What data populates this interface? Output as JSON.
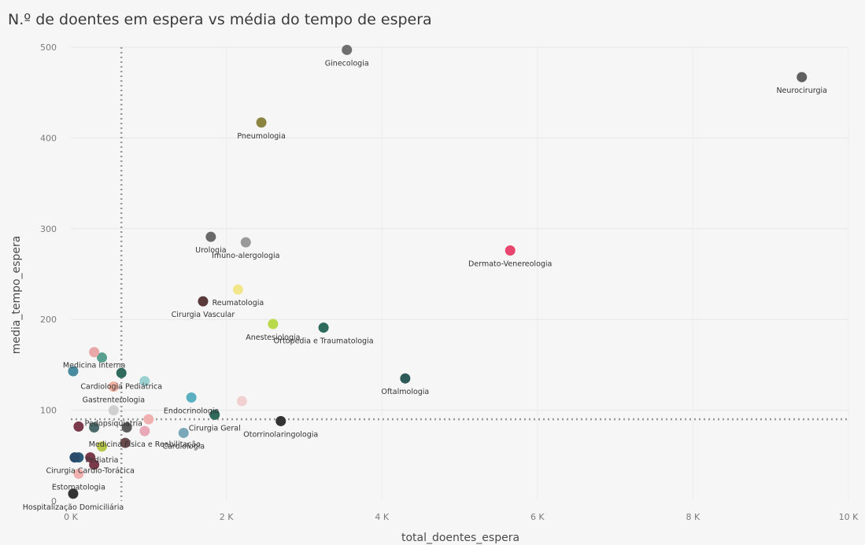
{
  "chart_data": {
    "type": "scatter",
    "title": "N.º de doentes em espera vs média do tempo de espera",
    "xlabel": "total_doentes_espera",
    "ylabel": "media_tempo_espera",
    "xlim": [
      0,
      10000
    ],
    "ylim": [
      0,
      500
    ],
    "x_ticks": [
      {
        "value": 0,
        "label": "0 K"
      },
      {
        "value": 2000,
        "label": "2 K"
      },
      {
        "value": 4000,
        "label": "4 K"
      },
      {
        "value": 6000,
        "label": "6 K"
      },
      {
        "value": 8000,
        "label": "8 K"
      },
      {
        "value": 10000,
        "label": "10 K"
      }
    ],
    "y_ticks": [
      0,
      100,
      200,
      300,
      400,
      500
    ],
    "grid": true,
    "reference_lines": [
      {
        "axis": "x",
        "value": 650,
        "style": "dotted",
        "color": "#999999"
      },
      {
        "axis": "y",
        "value": 90,
        "style": "dotted",
        "color": "#999999"
      }
    ],
    "points": [
      {
        "label": "Ginecologia",
        "x": 3550,
        "y": 497,
        "color": "#6f6f6f"
      },
      {
        "label": "Neurocirurgia",
        "x": 9400,
        "y": 467,
        "color": "#606060"
      },
      {
        "label": "Pneumologia",
        "x": 2450,
        "y": 417,
        "color": "#8a8440"
      },
      {
        "label": "Urologia",
        "x": 1800,
        "y": 291,
        "color": "#6a6a6a"
      },
      {
        "label": "Imuno-alergologia",
        "x": 2250,
        "y": 285,
        "color": "#9a9a9a"
      },
      {
        "label": "Dermato-Venereologia",
        "x": 5650,
        "y": 276,
        "color": "#e8466e"
      },
      {
        "label": "Reumatologia",
        "x": 2150,
        "y": 233,
        "color": "#f2e68a"
      },
      {
        "label": "Cirurgia Vascular",
        "x": 1700,
        "y": 220,
        "color": "#5a3a3a"
      },
      {
        "label": "Ortopedia e Traumatologia",
        "x": 3250,
        "y": 191,
        "color": "#2f6b5c"
      },
      {
        "label": "Anestesiologia",
        "x": 2600,
        "y": 195,
        "color": "#b8d94a"
      },
      {
        "label": "Medicina Interna",
        "x": 300,
        "y": 164,
        "color": "#e8a8a8"
      },
      {
        "label": "Cardiologia Pediátrica",
        "x": 650,
        "y": 141,
        "color": "#2f6b5c"
      },
      {
        "label": "Oftalmologia",
        "x": 4300,
        "y": 135,
        "color": "#2f5a5a"
      },
      {
        "label": "Gastrenterologia",
        "x": 550,
        "y": 126,
        "color": "#f0b0a0"
      },
      {
        "label": "Endocrinologia",
        "x": 1550,
        "y": 114,
        "color": "#5ab0c0"
      },
      {
        "label": "Pedopsiquiatria",
        "x": 550,
        "y": 100,
        "color": "#d0d0d0"
      },
      {
        "label": "Cirurgia Geral",
        "x": 1850,
        "y": 95,
        "color": "#2f6b5c"
      },
      {
        "label": "Otorrinolaringologia",
        "x": 2700,
        "y": 88,
        "color": "#333333"
      },
      {
        "label": "Cardiologia",
        "x": 1450,
        "y": 75,
        "color": "#7aa8b8"
      },
      {
        "label": "Medicina Física e Reabilitação",
        "x": 950,
        "y": 77,
        "color": "#e8a8b8"
      },
      {
        "label": "Pediatria",
        "x": 400,
        "y": 60,
        "color": "#b8c84a"
      },
      {
        "label": "Cirurgia Cardio-Torácica",
        "x": 250,
        "y": 48,
        "color": "#7a3a4a"
      },
      {
        "label": "Estomatologia",
        "x": 100,
        "y": 30,
        "color": "#f0b0b0"
      },
      {
        "label": "Hospitalização Domiciliária",
        "x": 30,
        "y": 8,
        "color": "#333333"
      }
    ],
    "unlabeled_points": [
      {
        "x": 30,
        "y": 143,
        "color": "#4a8aa0"
      },
      {
        "x": 400,
        "y": 158,
        "color": "#5aa090"
      },
      {
        "x": 950,
        "y": 132,
        "color": "#9ad0d0"
      },
      {
        "x": 2200,
        "y": 110,
        "color": "#f0d0d0"
      },
      {
        "x": 100,
        "y": 82,
        "color": "#7a3a4a"
      },
      {
        "x": 300,
        "y": 81,
        "color": "#4a6a6a"
      },
      {
        "x": 720,
        "y": 81,
        "color": "#5a5a5a"
      },
      {
        "x": 700,
        "y": 64,
        "color": "#6a4a4a"
      },
      {
        "x": 100,
        "y": 48,
        "color": "#2a5a7a"
      },
      {
        "x": 50,
        "y": 48,
        "color": "#2a4a6a"
      },
      {
        "x": 300,
        "y": 40,
        "color": "#7a3a4a"
      },
      {
        "x": 1000,
        "y": 90,
        "color": "#f0b0b0"
      }
    ]
  }
}
